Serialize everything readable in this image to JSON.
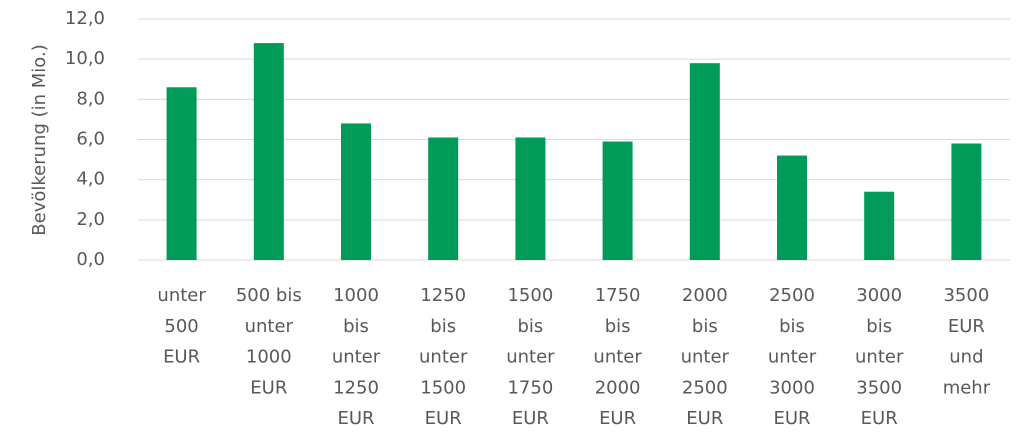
{
  "chart_data": {
    "type": "bar",
    "y_axis_label": "Bevölkerung (in Mio.)",
    "categories": [
      [
        "unter",
        "500",
        "EUR"
      ],
      [
        "500 bis",
        "unter",
        "1000",
        "EUR"
      ],
      [
        "1000",
        "bis",
        "unter",
        "1250",
        "EUR"
      ],
      [
        "1250",
        "bis",
        "unter",
        "1500",
        "EUR"
      ],
      [
        "1500",
        "bis",
        "unter",
        "1750",
        "EUR"
      ],
      [
        "1750",
        "bis",
        "unter",
        "2000",
        "EUR"
      ],
      [
        "2000",
        "bis",
        "unter",
        "2500",
        "EUR"
      ],
      [
        "2500",
        "bis",
        "unter",
        "3000",
        "EUR"
      ],
      [
        "3000",
        "bis",
        "unter",
        "3500",
        "EUR"
      ],
      [
        "3500",
        "EUR",
        "und",
        "mehr"
      ]
    ],
    "values": [
      8.6,
      10.8,
      6.8,
      6.1,
      6.1,
      5.9,
      9.8,
      5.2,
      3.4,
      5.8
    ],
    "color": "#009b58",
    "ylim": [
      0,
      12
    ],
    "yticks": [
      {
        "value": 0,
        "label": "0,0"
      },
      {
        "value": 2,
        "label": "2,0"
      },
      {
        "value": 4,
        "label": "4,0"
      },
      {
        "value": 6,
        "label": "6,0"
      },
      {
        "value": 8,
        "label": "8,0"
      },
      {
        "value": 10,
        "label": "10,0"
      },
      {
        "value": 12,
        "label": "12,0"
      }
    ],
    "grid": true
  }
}
